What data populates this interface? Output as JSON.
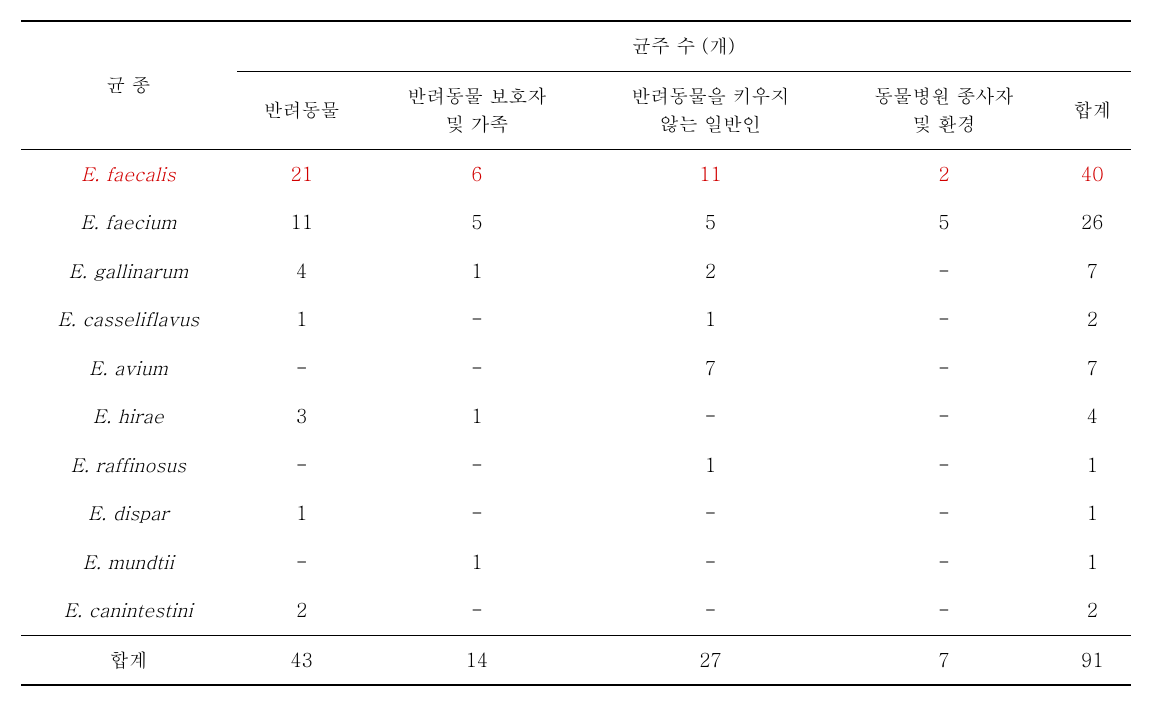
{
  "table": {
    "header": {
      "species_label": "균 종",
      "count_label": "균주 수 (개)",
      "columns": [
        "반려동물",
        "반려동물 보호자\n및 가족",
        "반려동물을 키우지\n않는 일반인",
        "동물병원 종사자\n및 환경",
        "합계"
      ]
    },
    "rows": [
      {
        "species": "E. faecalis",
        "highlight": true,
        "values": [
          "21",
          "6",
          "11",
          "2",
          "40"
        ]
      },
      {
        "species": "E. faecium",
        "highlight": false,
        "values": [
          "11",
          "5",
          "5",
          "5",
          "26"
        ]
      },
      {
        "species": "E. gallinarum",
        "highlight": false,
        "values": [
          "4",
          "1",
          "2",
          "-",
          "7"
        ]
      },
      {
        "species": "E. casseliflavus",
        "highlight": false,
        "values": [
          "1",
          "-",
          "1",
          "-",
          "2"
        ]
      },
      {
        "species": "E. avium",
        "highlight": false,
        "values": [
          "-",
          "-",
          "7",
          "-",
          "7"
        ]
      },
      {
        "species": "E. hirae",
        "highlight": false,
        "values": [
          "3",
          "1",
          "-",
          "-",
          "4"
        ]
      },
      {
        "species": "E. raffinosus",
        "highlight": false,
        "values": [
          "-",
          "-",
          "1",
          "-",
          "1"
        ]
      },
      {
        "species": "E. dispar",
        "highlight": false,
        "values": [
          "1",
          "-",
          "-",
          "-",
          "1"
        ]
      },
      {
        "species": "E. mundtii",
        "highlight": false,
        "values": [
          "-",
          "1",
          "-",
          "-",
          "1"
        ]
      },
      {
        "species": "E. canintestini",
        "highlight": false,
        "values": [
          "2",
          "-",
          "-",
          "-",
          "2"
        ]
      }
    ],
    "totals": {
      "label": "합계",
      "values": [
        "43",
        "14",
        "27",
        "7",
        "91"
      ]
    }
  },
  "colors": {
    "highlight": "#d10000",
    "text": "#000000",
    "background": "#ffffff",
    "border": "#000000"
  }
}
